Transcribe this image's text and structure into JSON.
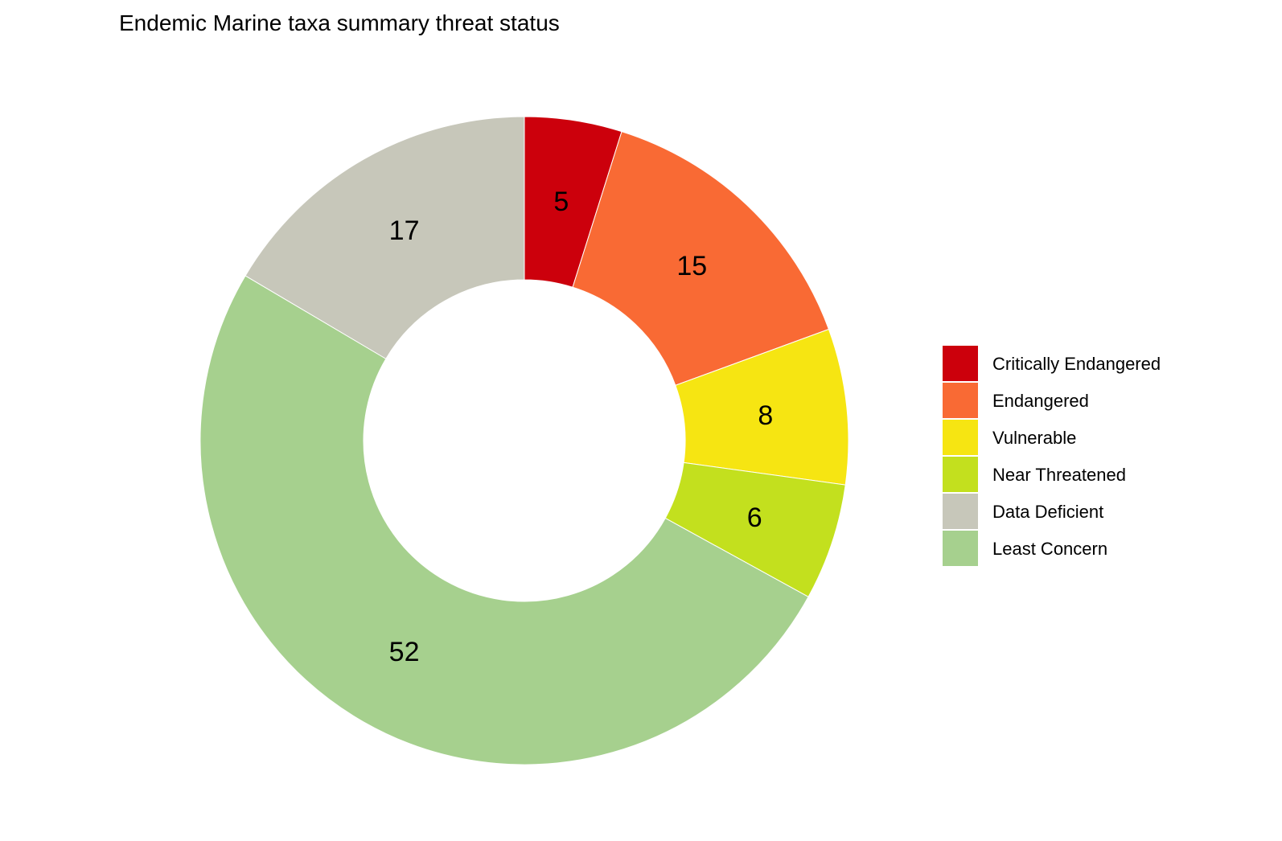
{
  "chart_data": {
    "type": "pie",
    "subtype": "donut",
    "title": "Endemic Marine taxa summary threat status",
    "categories": [
      "Critically Endangered",
      "Endangered",
      "Vulnerable",
      "Near Threatened",
      "Data Deficient",
      "Least Concern"
    ],
    "values": [
      5,
      15,
      8,
      6,
      17,
      52
    ],
    "colors": [
      "#CC000C",
      "#F96A34",
      "#F6E512",
      "#C3E01E",
      "#C7C7BA",
      "#A6D08E"
    ],
    "slice_order_clockwise_from_top": [
      "Critically Endangered",
      "Endangered",
      "Vulnerable",
      "Near Threatened",
      "Least Concern",
      "Data Deficient"
    ],
    "legend_position": "right",
    "legend": [
      {
        "label": "Critically Endangered",
        "color": "#CC000C"
      },
      {
        "label": "Endangered",
        "color": "#F96A34"
      },
      {
        "label": "Vulnerable",
        "color": "#F6E512"
      },
      {
        "label": "Near Threatened",
        "color": "#C3E01E"
      },
      {
        "label": "Data Deficient",
        "color": "#C7C7BA"
      },
      {
        "label": "Least Concern",
        "color": "#A6D08E"
      }
    ]
  }
}
